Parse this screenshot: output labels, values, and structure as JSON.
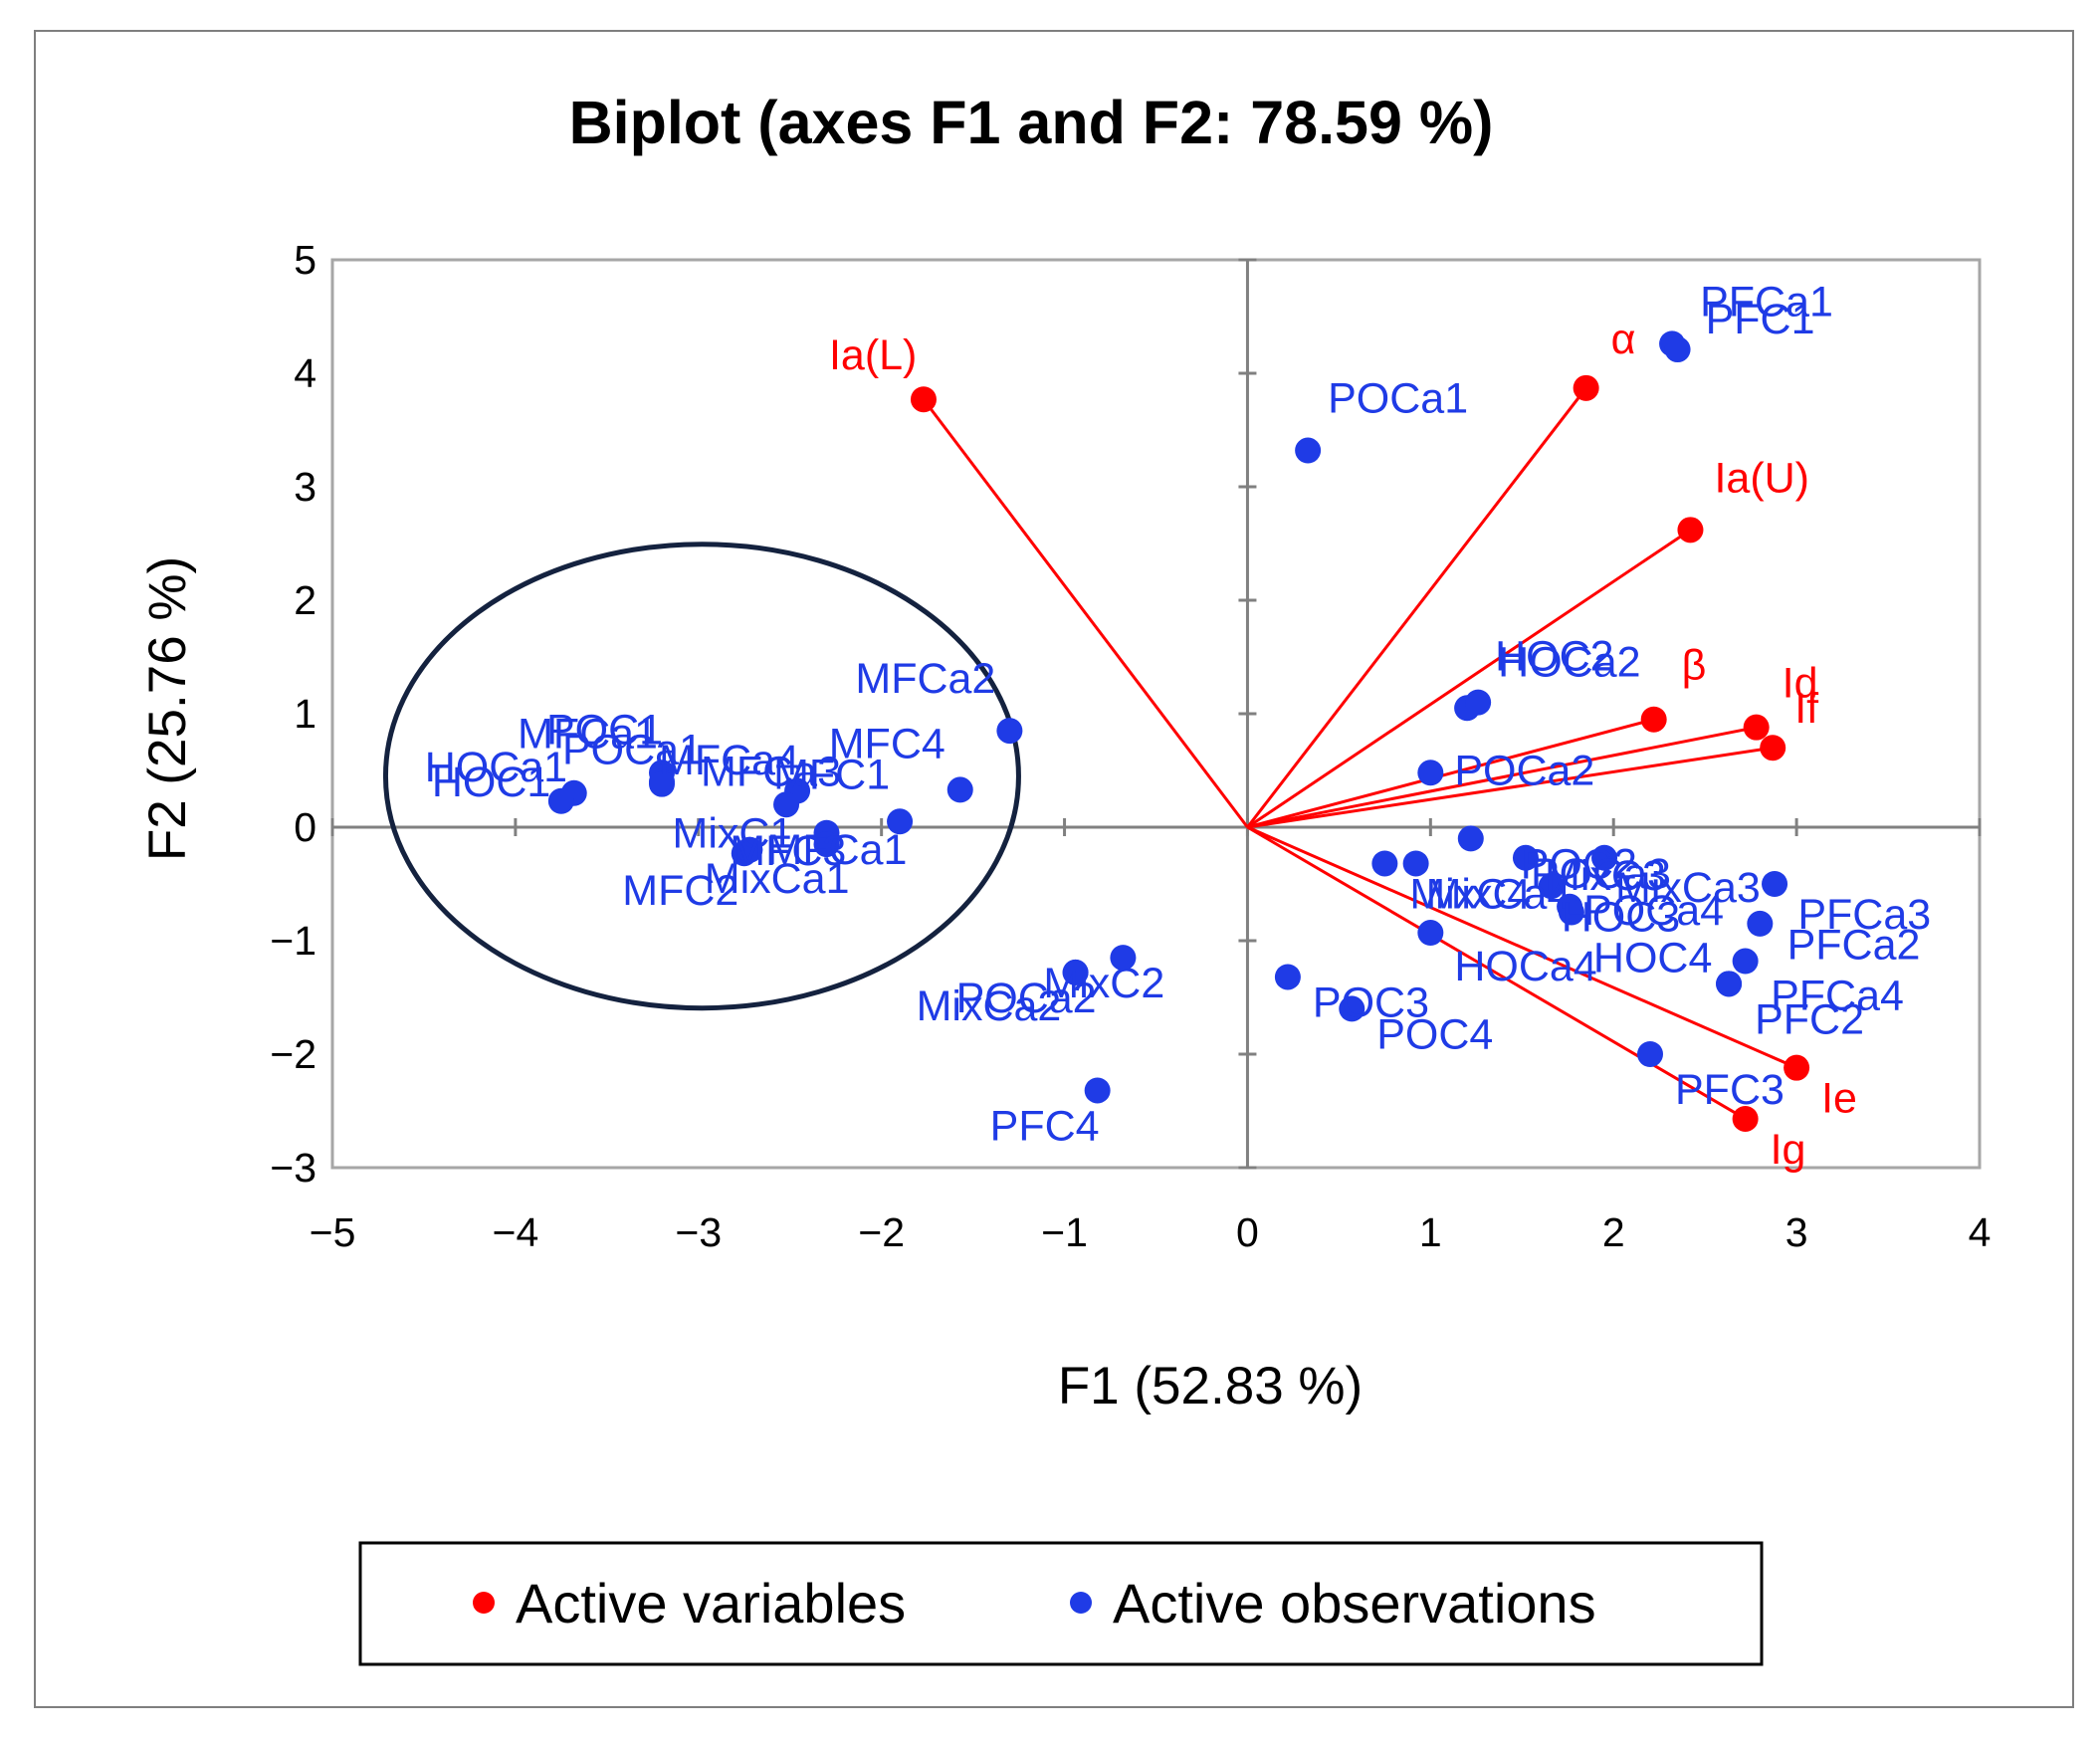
{
  "chart_data": {
    "type": "scatter",
    "title": "Biplot (axes F1 and F2: 78.59 %)",
    "xlabel": "F1 (52.83 %)",
    "ylabel": "F2 (25.76 %)",
    "xlim": [
      -5,
      4
    ],
    "ylim": [
      -3,
      5
    ],
    "x_ticks": [
      -5,
      -4,
      -3,
      -2,
      -1,
      0,
      1,
      2,
      3,
      4
    ],
    "y_ticks": [
      -3,
      -2,
      -1,
      0,
      1,
      2,
      3,
      4,
      5
    ],
    "x_tick_labels": [
      "−5",
      "−4",
      "−3",
      "−2",
      "−1",
      "0",
      "1",
      "2",
      "3",
      "4"
    ],
    "y_tick_labels": [
      "−3",
      "−2",
      "−1",
      "0",
      "1",
      "2",
      "3",
      "4",
      "5"
    ],
    "grid": false,
    "legend": {
      "position": "bottom",
      "entries": [
        {
          "label": "Active variables",
          "color": "#ff0000"
        },
        {
          "label": "Active observations",
          "color": "#1f3be6"
        }
      ]
    },
    "colors": {
      "variables": "#ff0000",
      "observations": "#1f3be6",
      "ellipse": "#14223f"
    },
    "variables": [
      {
        "label": "Ia(L)",
        "x": -1.77,
        "y": 3.77
      },
      {
        "label": "α",
        "x": 1.85,
        "y": 3.87
      },
      {
        "label": "Ia(U)",
        "x": 2.42,
        "y": 2.62
      },
      {
        "label": "β",
        "x": 2.22,
        "y": 0.95
      },
      {
        "label": "Id",
        "x": 2.78,
        "y": 0.88
      },
      {
        "label": "If",
        "x": 2.87,
        "y": 0.7
      },
      {
        "label": "Ie",
        "x": 3.0,
        "y": -2.12
      },
      {
        "label": "Ig",
        "x": 2.72,
        "y": -2.57
      }
    ],
    "observations": [
      {
        "label": "PFCa1",
        "x": 2.32,
        "y": 4.26
      },
      {
        "label": "PFC1",
        "x": 2.35,
        "y": 4.21
      },
      {
        "label": "POCa1",
        "x": 0.33,
        "y": 3.32
      },
      {
        "label": "HOC2",
        "x": 1.2,
        "y": 1.05
      },
      {
        "label": "HOCa2",
        "x": 1.26,
        "y": 1.1
      },
      {
        "label": "POCa2",
        "x": 1.0,
        "y": 0.48
      },
      {
        "label": "POC2",
        "x": 1.22,
        "y": -0.1
      },
      {
        "label": "MixC4",
        "x": 0.75,
        "y": -0.32
      },
      {
        "label": "MixCa4",
        "x": 0.92,
        "y": -0.32
      },
      {
        "label": "POCa3",
        "x": 1.52,
        "y": -0.27
      },
      {
        "label": "HOC3",
        "x": 1.66,
        "y": -0.52
      },
      {
        "label": "MixC3",
        "x": 1.95,
        "y": -0.27
      },
      {
        "label": "MixCa3",
        "x": 2.88,
        "y": -0.5
      },
      {
        "label": "POCa4",
        "x": 1.76,
        "y": -0.7
      },
      {
        "label": "HOC4",
        "x": 1.77,
        "y": -0.75
      },
      {
        "label": "PFCa3",
        "x": 2.8,
        "y": -0.85
      },
      {
        "label": "HOCa4",
        "x": 1.0,
        "y": -0.93
      },
      {
        "label": "PFCa2",
        "x": 2.72,
        "y": -1.18
      },
      {
        "label": "PFCa4",
        "x": 2.63,
        "y": -1.38
      },
      {
        "label": "PFC2",
        "x": 2.63,
        "y": -1.38
      },
      {
        "label": "POC3",
        "x": 0.22,
        "y": -1.32
      },
      {
        "label": "POC4",
        "x": 0.57,
        "y": -1.6
      },
      {
        "label": "PFC3",
        "x": 2.2,
        "y": -2.0
      },
      {
        "label": "MixC2",
        "x": -0.68,
        "y": -1.15
      },
      {
        "label": "POCa2",
        "x": -0.94,
        "y": -1.28
      },
      {
        "label": "MixCa2",
        "x": -0.94,
        "y": -1.28
      },
      {
        "label": "PFC4",
        "x": -0.82,
        "y": -2.32
      },
      {
        "label": "MFCa2",
        "x": -1.3,
        "y": 0.85
      },
      {
        "label": "MFC4",
        "x": -1.57,
        "y": 0.33
      },
      {
        "label": "MFCa3",
        "x": -1.9,
        "y": 0.05
      },
      {
        "label": "MFC1",
        "x": -2.46,
        "y": 0.32
      },
      {
        "label": "MFCa4",
        "x": -2.52,
        "y": 0.2
      },
      {
        "label": "MFCa1",
        "x": -3.2,
        "y": 0.48
      },
      {
        "label": "POC1",
        "x": -3.2,
        "y": 0.4
      },
      {
        "label": "POCa1",
        "x": -3.2,
        "y": 0.38
      },
      {
        "label": "HOCa1",
        "x": -3.68,
        "y": 0.3
      },
      {
        "label": "HOC1",
        "x": -3.75,
        "y": 0.23
      },
      {
        "label": "MixC1",
        "x": -2.3,
        "y": -0.05
      },
      {
        "label": "MFCa1",
        "x": -2.3,
        "y": -0.15
      },
      {
        "label": "MFC3",
        "x": -2.72,
        "y": -0.2
      },
      {
        "label": "MixCa1",
        "x": -2.75,
        "y": -0.23
      },
      {
        "label": "MFC2",
        "x": -2.72,
        "y": -0.2
      }
    ]
  }
}
